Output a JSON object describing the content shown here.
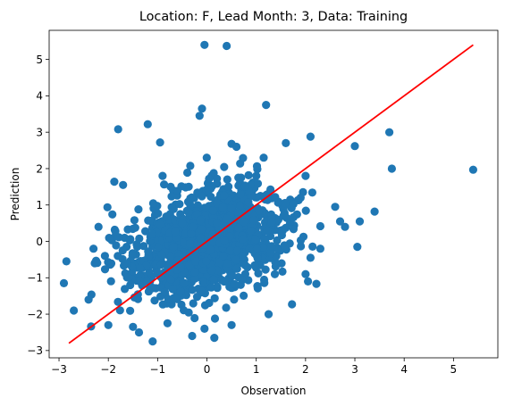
{
  "chart_data": {
    "type": "scatter",
    "title": "Location: F, Lead Month: 3, Data: Training",
    "xlabel": "Observation",
    "ylabel": "Prediction",
    "xlim": [
      -3.2,
      5.9
    ],
    "ylim": [
      -3.2,
      5.8
    ],
    "xticks": [
      -3,
      -2,
      -1,
      0,
      1,
      2,
      3,
      4,
      5
    ],
    "yticks": [
      -3,
      -2,
      -1,
      0,
      1,
      2,
      3,
      4,
      5
    ],
    "grid": false,
    "marker_color": "#1f77b4",
    "fit_line": {
      "color": "#ff0000",
      "x": [
        -2.8,
        5.4
      ],
      "y": [
        -2.8,
        5.4
      ]
    },
    "outliers": [
      {
        "x": -0.05,
        "y": 5.4
      },
      {
        "x": 0.4,
        "y": 5.37
      },
      {
        "x": 1.2,
        "y": 3.75
      },
      {
        "x": -0.1,
        "y": 3.65
      },
      {
        "x": -0.15,
        "y": 3.45
      },
      {
        "x": -1.2,
        "y": 3.22
      },
      {
        "x": -1.8,
        "y": 3.08
      },
      {
        "x": -0.95,
        "y": 2.72
      },
      {
        "x": 0.5,
        "y": 2.68
      },
      {
        "x": 0.6,
        "y": 2.6
      },
      {
        "x": 1.6,
        "y": 2.7
      },
      {
        "x": 2.1,
        "y": 2.88
      },
      {
        "x": 3.0,
        "y": 2.62
      },
      {
        "x": 3.7,
        "y": 3.0
      },
      {
        "x": 3.75,
        "y": 2.0
      },
      {
        "x": 5.4,
        "y": 1.97
      },
      {
        "x": 3.4,
        "y": 0.82
      },
      {
        "x": 3.1,
        "y": 0.55
      },
      {
        "x": 3.05,
        "y": -0.15
      },
      {
        "x": 2.7,
        "y": 0.55
      },
      {
        "x": 2.6,
        "y": 0.95
      },
      {
        "x": 2.8,
        "y": 0.4
      },
      {
        "x": 2.05,
        "y": -1.1
      },
      {
        "x": 2.1,
        "y": -0.45
      },
      {
        "x": -2.9,
        "y": -1.15
      },
      {
        "x": -2.7,
        "y": -1.9
      },
      {
        "x": -2.0,
        "y": -2.3
      },
      {
        "x": -1.1,
        "y": -2.75
      },
      {
        "x": -0.3,
        "y": -2.6
      },
      {
        "x": -0.05,
        "y": -2.4
      },
      {
        "x": 0.15,
        "y": -2.65
      },
      {
        "x": 0.5,
        "y": -2.3
      },
      {
        "x": -2.4,
        "y": -1.6
      },
      {
        "x": -1.5,
        "y": -2.35
      },
      {
        "x": -0.8,
        "y": -2.25
      },
      {
        "x": 1.25,
        "y": -2.0
      },
      {
        "x": -2.2,
        "y": 0.4
      },
      {
        "x": -2.3,
        "y": -0.2
      },
      {
        "x": -2.85,
        "y": -0.55
      },
      {
        "x": -1.7,
        "y": 1.55
      },
      {
        "x": -0.9,
        "y": 1.8
      },
      {
        "x": 1.0,
        "y": 1.8
      },
      {
        "x": 2.0,
        "y": 1.8
      },
      {
        "x": 1.9,
        "y": 1.2
      },
      {
        "x": 2.3,
        "y": -0.2
      },
      {
        "x": 2.0,
        "y": -0.9
      }
    ],
    "cluster": {
      "n": 1250,
      "x_mean": 0.0,
      "x_sd": 0.78,
      "slope": 0.32,
      "resid_sd": 0.74,
      "x_range": [
        -2.7,
        2.3
      ],
      "y_range": [
        -2.5,
        2.3
      ]
    }
  }
}
